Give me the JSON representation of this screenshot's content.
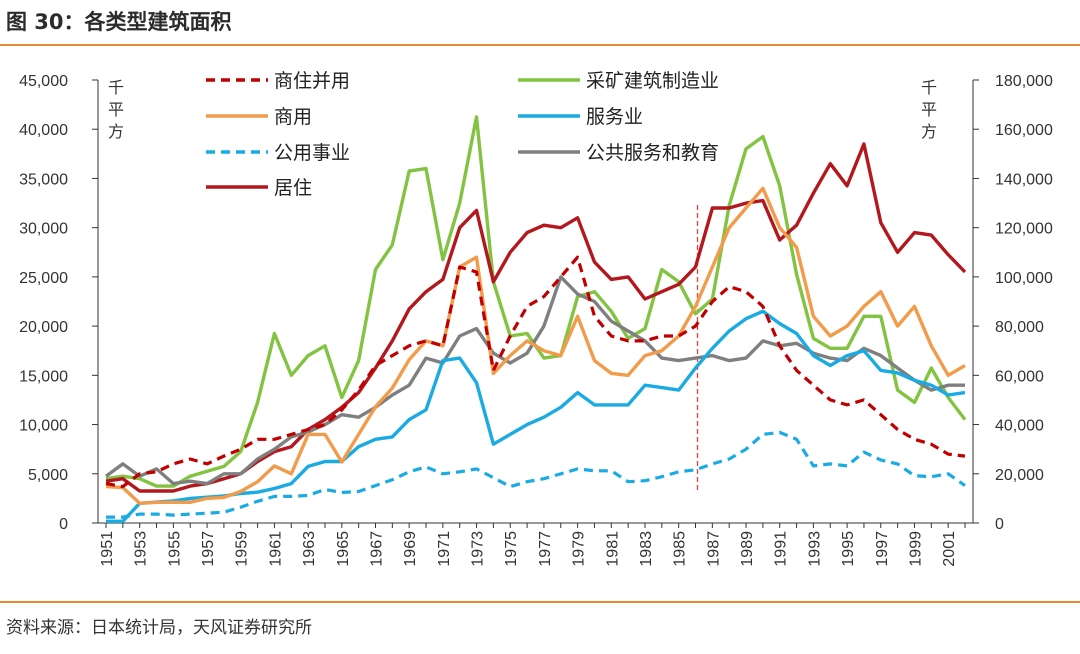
{
  "title": "图 30：各类型建筑面积",
  "source": "资料来源：日本统计局，天风证券研究所",
  "chart_data": {
    "type": "line",
    "x": [
      1951,
      1952,
      1953,
      1954,
      1955,
      1956,
      1957,
      1958,
      1959,
      1960,
      1961,
      1962,
      1963,
      1964,
      1965,
      1966,
      1967,
      1968,
      1969,
      1970,
      1971,
      1972,
      1973,
      1974,
      1975,
      1976,
      1977,
      1978,
      1979,
      1980,
      1981,
      1982,
      1983,
      1984,
      1985,
      1986,
      1987,
      1988,
      1989,
      1990,
      1991,
      1992,
      1993,
      1994,
      1995,
      1996,
      1997,
      1998,
      1999,
      2000,
      2001,
      2002
    ],
    "x_tick_labels": [
      "1951",
      "1953",
      "1955",
      "1957",
      "1959",
      "1961",
      "1963",
      "1965",
      "1967",
      "1969",
      "1971",
      "1973",
      "1975",
      "1977",
      "1979",
      "1981",
      "1983",
      "1985",
      "1987",
      "1989",
      "1991",
      "1993",
      "1995",
      "1997",
      "1999",
      "2001"
    ],
    "y_left": {
      "unit_label": "千平方",
      "lim": [
        0,
        45000
      ],
      "ticks": [
        "0",
        "5,000",
        "10,000",
        "15,000",
        "20,000",
        "25,000",
        "30,000",
        "35,000",
        "40,000",
        "45,000"
      ]
    },
    "y_right": {
      "unit_label": "千平方",
      "lim": [
        0,
        180000
      ],
      "ticks": [
        "0",
        "20,000",
        "40,000",
        "60,000",
        "80,000",
        "100,000",
        "120,000",
        "140,000",
        "160,000",
        "180,000"
      ]
    },
    "marker_line": {
      "x": 1986,
      "color": "#e8413c"
    },
    "colors": {
      "axis": "#333333",
      "accent": "#e98a2f"
    },
    "series": [
      {
        "name": "商住并用",
        "axis": "left",
        "color": "#c00000",
        "dash": true,
        "values": [
          4000,
          3700,
          5000,
          5200,
          6000,
          6500,
          6000,
          6800,
          7500,
          8500,
          8500,
          9000,
          9500,
          10000,
          11500,
          13500,
          16000,
          17000,
          18000,
          18500,
          18000,
          26000,
          25500,
          15500,
          19000,
          22000,
          23000,
          25000,
          27000,
          21000,
          19000,
          18500,
          18500,
          19000,
          19000,
          20000,
          22500,
          24000,
          23500,
          22000,
          18000,
          15500,
          14000,
          12500,
          12000,
          12500,
          11000,
          9500,
          8500,
          8000,
          7000,
          6800
        ]
      },
      {
        "name": "商用",
        "axis": "left",
        "color": "#f29b4a",
        "dash": false,
        "values": [
          3700,
          3600,
          2000,
          2100,
          2100,
          2100,
          2500,
          2600,
          3200,
          4200,
          5800,
          5000,
          9000,
          9000,
          6200,
          9000,
          11800,
          13700,
          16600,
          18500,
          18000,
          26000,
          27000,
          15200,
          17000,
          18500,
          17500,
          17000,
          21000,
          16500,
          15200,
          15000,
          17000,
          17500,
          19000,
          22000,
          26000,
          30000,
          32000,
          34000,
          30000,
          28000,
          21000,
          19000,
          20000,
          22000,
          23500,
          20000,
          22000,
          18000,
          15000,
          16000
        ]
      },
      {
        "name": "公用事业",
        "axis": "left",
        "color": "#1aabe3",
        "dash": true,
        "values": [
          600,
          600,
          900,
          900,
          800,
          900,
          1000,
          1100,
          1600,
          2200,
          2700,
          2700,
          2800,
          3400,
          3100,
          3200,
          3800,
          4400,
          5200,
          5700,
          5000,
          5200,
          5500,
          4600,
          3700,
          4200,
          4500,
          5000,
          5500,
          5300,
          5300,
          4200,
          4300,
          4700,
          5200,
          5400,
          6000,
          6500,
          7500,
          9000,
          9200,
          8500,
          5800,
          6000,
          5800,
          7200,
          6400,
          6000,
          4800,
          4700,
          5000,
          3800
        ]
      },
      {
        "name": "居住",
        "axis": "right",
        "color": "#b3181e",
        "dash": false,
        "values": [
          17000,
          18000,
          13000,
          13000,
          13000,
          15000,
          16000,
          18000,
          20000,
          25000,
          29000,
          31000,
          38000,
          42000,
          47000,
          53000,
          63000,
          74000,
          87000,
          94000,
          99000,
          120000,
          127000,
          98000,
          110000,
          118000,
          121000,
          120000,
          124000,
          106000,
          99000,
          100000,
          91000,
          94000,
          97000,
          104000,
          128000,
          128000,
          130000,
          131000,
          115000,
          121000,
          134000,
          146000,
          137000,
          154000,
          122000,
          110000,
          118000,
          117000,
          109000,
          102000
        ]
      },
      {
        "name": "采矿建筑制造业",
        "axis": "right",
        "color": "#82c341",
        "dash": false,
        "values": [
          18000,
          19000,
          18000,
          15000,
          15000,
          19000,
          21000,
          23000,
          29000,
          49000,
          77000,
          60000,
          68000,
          72000,
          51000,
          66000,
          103000,
          113000,
          143000,
          144000,
          107000,
          130000,
          165000,
          98000,
          76000,
          77000,
          67000,
          68000,
          92000,
          94000,
          86000,
          75000,
          79000,
          103000,
          98000,
          85000,
          91000,
          129000,
          152000,
          157000,
          137000,
          101000,
          75000,
          71000,
          71000,
          84000,
          84000,
          54000,
          49000,
          63000,
          51000,
          42000
        ]
      },
      {
        "name": "服务业",
        "axis": "right",
        "color": "#1aabe3",
        "dash": false,
        "values": [
          700,
          700,
          8000,
          8500,
          9000,
          10000,
          10500,
          11000,
          12000,
          12500,
          14000,
          16000,
          23000,
          25000,
          25000,
          31000,
          34000,
          35000,
          42000,
          46000,
          66000,
          67000,
          57000,
          32000,
          36000,
          40000,
          43000,
          47000,
          53000,
          48000,
          48000,
          48000,
          56000,
          55000,
          54000,
          63000,
          71000,
          78000,
          83000,
          86000,
          81000,
          77000,
          68000,
          64000,
          68000,
          70000,
          62000,
          61000,
          58000,
          56000,
          52000,
          53000
        ]
      },
      {
        "name": "公共服务和教育",
        "axis": "right",
        "color": "#7f7f7f",
        "dash": false,
        "values": [
          19000,
          24000,
          19000,
          22000,
          16000,
          17000,
          16000,
          20000,
          20000,
          26000,
          30000,
          35000,
          37000,
          40000,
          44000,
          43000,
          47000,
          52000,
          56000,
          67000,
          65000,
          76000,
          79000,
          69000,
          65000,
          69000,
          80000,
          100000,
          93000,
          90000,
          82000,
          78000,
          74000,
          67000,
          66000,
          67000,
          68000,
          66000,
          67000,
          74000,
          72000,
          73000,
          69000,
          67000,
          66000,
          71000,
          68000,
          63000,
          58000,
          54000,
          56000,
          56000
        ]
      }
    ]
  }
}
